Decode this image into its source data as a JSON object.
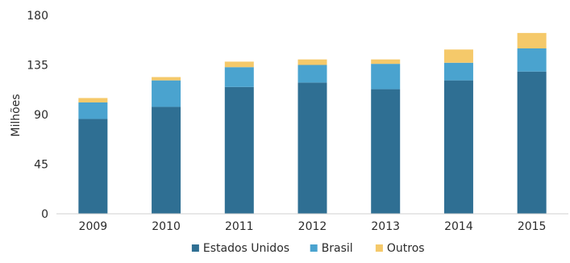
{
  "chart_data": {
    "type": "bar",
    "stacked": true,
    "categories": [
      "2009",
      "2010",
      "2011",
      "2012",
      "2013",
      "2014",
      "2015"
    ],
    "series": [
      {
        "name": "Estados Unidos",
        "color": "#2f6f93",
        "values": [
          86,
          97,
          115,
          119,
          113,
          121,
          129
        ]
      },
      {
        "name": "Brasil",
        "color": "#4aa3cf",
        "values": [
          15,
          24,
          18,
          16,
          23,
          16,
          21
        ]
      },
      {
        "name": "Outros",
        "color": "#f5c96a",
        "values": [
          4,
          3,
          5,
          5,
          4,
          12,
          14
        ]
      }
    ],
    "ylabel": "Milhões",
    "xlabel": "",
    "ylim": [
      0,
      180
    ],
    "yticks": [
      "0",
      "45",
      "90",
      "135",
      "180"
    ],
    "grid": false,
    "legend": "bottom"
  }
}
